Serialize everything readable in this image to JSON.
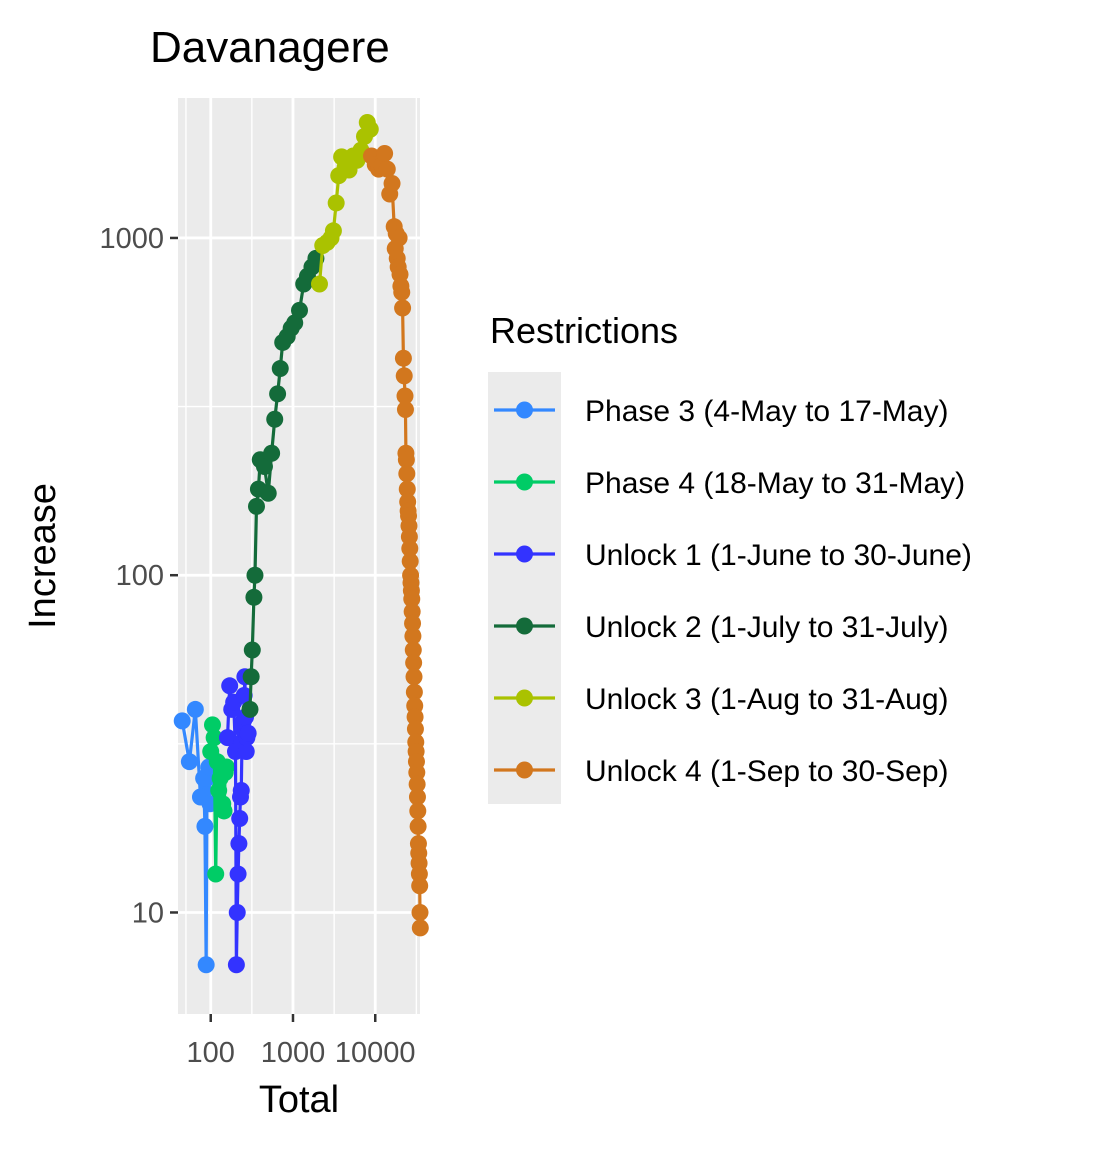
{
  "chart_data": {
    "type": "line",
    "title": "Davanagere",
    "xlabel": "Total",
    "ylabel": "Increase",
    "x_scale": "log10",
    "y_scale": "log10",
    "xlim": [
      40,
      35000
    ],
    "ylim": [
      5,
      2600
    ],
    "x_ticks": [
      100,
      1000,
      10000
    ],
    "x_tick_labels": [
      "100",
      "1000",
      "10000"
    ],
    "y_ticks": [
      10,
      100,
      1000
    ],
    "y_tick_labels": [
      "10",
      "100",
      "1000"
    ],
    "grid": true,
    "legend": {
      "title": "Restrictions",
      "position": "right"
    },
    "series": [
      {
        "name": "Phase 3 (4-May to 17-May)",
        "color": "#3388FF",
        "points": [
          [
            45,
            37
          ],
          [
            55,
            28
          ],
          [
            65,
            40
          ],
          [
            75,
            22
          ],
          [
            82,
            25
          ],
          [
            85,
            18
          ],
          [
            88,
            7
          ],
          [
            90,
            25
          ],
          [
            95,
            27
          ],
          [
            98,
            21
          ]
        ]
      },
      {
        "name": "Phase 4 (18-May to 31-May)",
        "color": "#00CC66",
        "points": [
          [
            100,
            30
          ],
          [
            105,
            36
          ],
          [
            110,
            33
          ],
          [
            115,
            13
          ],
          [
            120,
            28
          ],
          [
            125,
            23
          ],
          [
            130,
            25
          ],
          [
            140,
            21
          ],
          [
            145,
            20
          ],
          [
            150,
            26
          ],
          [
            155,
            27
          ]
        ]
      },
      {
        "name": "Unlock 1 (1-June to 30-June)",
        "color": "#3333FF",
        "points": [
          [
            160,
            33
          ],
          [
            170,
            47
          ],
          [
            180,
            40
          ],
          [
            190,
            42
          ],
          [
            200,
            30
          ],
          [
            205,
            7
          ],
          [
            210,
            10
          ],
          [
            215,
            13
          ],
          [
            220,
            16
          ],
          [
            225,
            19
          ],
          [
            230,
            22
          ],
          [
            235,
            23
          ],
          [
            240,
            32
          ],
          [
            245,
            35
          ],
          [
            250,
            37
          ],
          [
            255,
            44
          ],
          [
            260,
            50
          ],
          [
            265,
            38
          ],
          [
            270,
            30
          ],
          [
            275,
            33
          ],
          [
            285,
            34
          ]
        ]
      },
      {
        "name": "Unlock 2 (1-July to 31-July)",
        "color": "#146B3A",
        "points": [
          [
            300,
            40
          ],
          [
            310,
            50
          ],
          [
            320,
            60
          ],
          [
            335,
            86
          ],
          [
            345,
            100
          ],
          [
            360,
            160
          ],
          [
            380,
            180
          ],
          [
            400,
            220
          ],
          [
            450,
            210
          ],
          [
            500,
            175
          ],
          [
            550,
            230
          ],
          [
            600,
            290
          ],
          [
            650,
            345
          ],
          [
            700,
            410
          ],
          [
            750,
            490
          ],
          [
            850,
            510
          ],
          [
            950,
            540
          ],
          [
            1050,
            560
          ],
          [
            1200,
            610
          ],
          [
            1350,
            730
          ],
          [
            1500,
            770
          ],
          [
            1700,
            820
          ],
          [
            1900,
            870
          ]
        ]
      },
      {
        "name": "Unlock 3 (1-Aug to 31-Aug)",
        "color": "#AAC200",
        "points": [
          [
            2100,
            730
          ],
          [
            2300,
            950
          ],
          [
            2600,
            970
          ],
          [
            2900,
            1000
          ],
          [
            3100,
            1050
          ],
          [
            3350,
            1270
          ],
          [
            3600,
            1530
          ],
          [
            3900,
            1740
          ],
          [
            4300,
            1620
          ],
          [
            4800,
            1590
          ],
          [
            5400,
            1750
          ],
          [
            6000,
            1700
          ],
          [
            6700,
            1820
          ],
          [
            7400,
            2000
          ],
          [
            8000,
            2200
          ],
          [
            8700,
            2100
          ]
        ]
      },
      {
        "name": "Unlock 4 (1-Sep to 30-Sep)",
        "color": "#D2771E",
        "points": [
          [
            9000,
            1750
          ],
          [
            10000,
            1650
          ],
          [
            11000,
            1600
          ],
          [
            12000,
            1640
          ],
          [
            13000,
            1780
          ],
          [
            14000,
            1600
          ],
          [
            15000,
            1350
          ],
          [
            16000,
            1450
          ],
          [
            17000,
            1080
          ],
          [
            17500,
            930
          ],
          [
            18000,
            1030
          ],
          [
            18500,
            870
          ],
          [
            19000,
            820
          ],
          [
            19500,
            1000
          ],
          [
            20000,
            780
          ],
          [
            20500,
            720
          ],
          [
            21000,
            690
          ],
          [
            21500,
            620
          ],
          [
            22000,
            440
          ],
          [
            22500,
            390
          ],
          [
            23000,
            340
          ],
          [
            23300,
            310
          ],
          [
            23600,
            230
          ],
          [
            23900,
            220
          ],
          [
            24200,
            200
          ],
          [
            24500,
            180
          ],
          [
            24800,
            165
          ],
          [
            25100,
            155
          ],
          [
            25400,
            150
          ],
          [
            25700,
            140
          ],
          [
            26000,
            130
          ],
          [
            26300,
            120
          ],
          [
            26600,
            110
          ],
          [
            26900,
            100
          ],
          [
            27200,
            95
          ],
          [
            27500,
            90
          ],
          [
            27800,
            85
          ],
          [
            28100,
            78
          ],
          [
            28400,
            72
          ],
          [
            28700,
            66
          ],
          [
            29000,
            60
          ],
          [
            29300,
            55
          ],
          [
            29600,
            50
          ],
          [
            29900,
            45
          ],
          [
            30200,
            41
          ],
          [
            30500,
            38
          ],
          [
            30800,
            35
          ],
          [
            31100,
            32
          ],
          [
            31400,
            30
          ],
          [
            31700,
            28
          ],
          [
            32000,
            26
          ],
          [
            32300,
            24
          ],
          [
            32600,
            22
          ],
          [
            32900,
            20
          ],
          [
            33200,
            18
          ],
          [
            33500,
            16
          ],
          [
            33800,
            15
          ],
          [
            34100,
            14
          ],
          [
            34400,
            13
          ],
          [
            34700,
            12
          ],
          [
            35000,
            10
          ],
          [
            35300,
            9
          ]
        ]
      }
    ]
  }
}
